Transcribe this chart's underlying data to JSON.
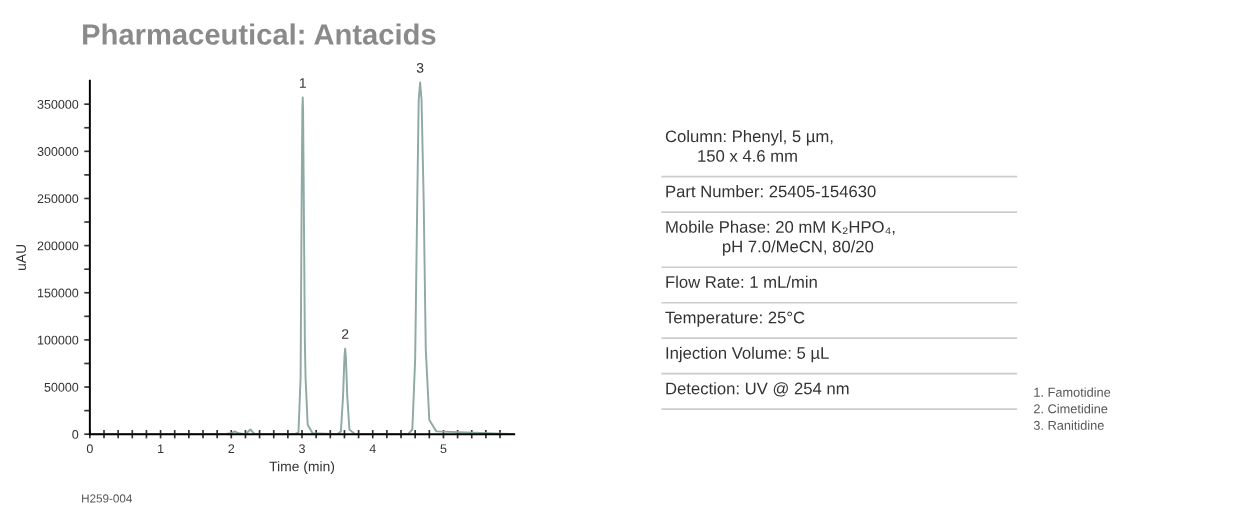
{
  "chart_data": [
    {
      "type": "line",
      "title": "Pharmaceutical: Antacids",
      "xlabel": "Time (min)",
      "ylabel": "uAU",
      "series": [
        {
          "color": "#8fa9a5",
          "x": [
            0,
            1.9,
            2.0,
            2.05,
            2.1,
            2.2,
            2.27,
            2.33,
            2.4,
            2.9,
            2.95,
            2.98,
            2.995,
            3.005,
            3.01,
            3.015,
            3.025,
            3.04,
            3.05,
            3.08,
            3.15,
            3.5,
            3.55,
            3.58,
            3.6,
            3.61,
            3.62,
            3.64,
            3.67,
            3.75,
            4.5,
            4.56,
            4.6,
            4.63,
            4.65,
            4.67,
            4.69,
            4.72,
            4.75,
            4.8,
            4.9,
            6.0
          ],
          "values": [
            0,
            0,
            1000,
            3000,
            1000,
            0,
            5000,
            0,
            0,
            0,
            2000,
            60000,
            250000,
            345000,
            357000,
            345000,
            250000,
            100000,
            60000,
            10000,
            1000,
            0,
            3000,
            40000,
            82000,
            90700,
            82000,
            40000,
            5000,
            0,
            0,
            5000,
            80000,
            250000,
            355000,
            373000,
            355000,
            250000,
            90000,
            15000,
            3000,
            0
          ]
        }
      ],
      "xlim": [
        0,
        6
      ],
      "ylim": [
        0,
        375000
      ],
      "xticks": [
        0,
        {
          "value": 0.2,
          "label": null
        },
        {
          "value": 0.4,
          "label": null
        },
        {
          "value": 0.6,
          "label": null
        },
        {
          "value": 0.8,
          "label": null
        },
        1,
        {
          "value": 1.2,
          "label": null
        },
        {
          "value": 1.4,
          "label": null
        },
        {
          "value": 1.6,
          "label": null
        },
        {
          "value": 1.8,
          "label": null
        },
        2,
        {
          "value": 2.2,
          "label": null
        },
        {
          "value": 2.4,
          "label": null
        },
        {
          "value": 2.6,
          "label": null
        },
        {
          "value": 2.8,
          "label": null
        },
        3,
        {
          "value": 3.2,
          "label": null
        },
        {
          "value": 3.4,
          "label": null
        },
        {
          "value": 3.6,
          "label": null
        },
        {
          "value": 3.8,
          "label": null
        },
        4,
        {
          "value": 4.2,
          "label": null
        },
        {
          "value": 4.4,
          "label": null
        },
        {
          "value": 4.6,
          "label": null
        },
        {
          "value": 4.8,
          "label": null
        },
        5,
        {
          "value": 5.2,
          "label": null
        },
        {
          "value": 5.4,
          "label": null
        },
        {
          "value": 5.6,
          "label": null
        },
        {
          "value": 5.8,
          "label": null
        }
      ],
      "yticks": [
        0,
        {
          "value": 25000,
          "label": null
        },
        50000,
        {
          "value": 75000,
          "label": null
        },
        100000,
        {
          "value": 125000,
          "label": null
        },
        150000,
        {
          "value": 175000,
          "label": null
        },
        200000,
        {
          "value": 225000,
          "label": null
        },
        250000,
        {
          "value": 275000,
          "label": null
        },
        300000,
        {
          "value": 325000,
          "label": null
        },
        350000
      ],
      "grid": false,
      "legend": false,
      "annotations": [
        {
          "text": "1",
          "x": 3.01,
          "y": 357000
        },
        {
          "text": "2",
          "x": 3.61,
          "y": 90700
        },
        {
          "text": "3",
          "x": 4.67,
          "y": 373000
        },
        "1. Famotidine\n2. Cimetidine\n3. Ranitidine",
        "H259-004"
      ]
    },
    {
      "type": "other",
      "annotations": [
        "Column: Phenyl, 5 µm,\n150 x 4.6 mm",
        "Part Number: 25405-154630",
        "Mobile Phase: 20 mM K₂HPO₄,\npH 7.0/MeCN, 80/20",
        "Flow Rate: 1 mL/min",
        "Temperature: 25°C",
        "Injection Volume: 5 µL",
        "Detection: UV @ 254 nm"
      ]
    }
  ]
}
